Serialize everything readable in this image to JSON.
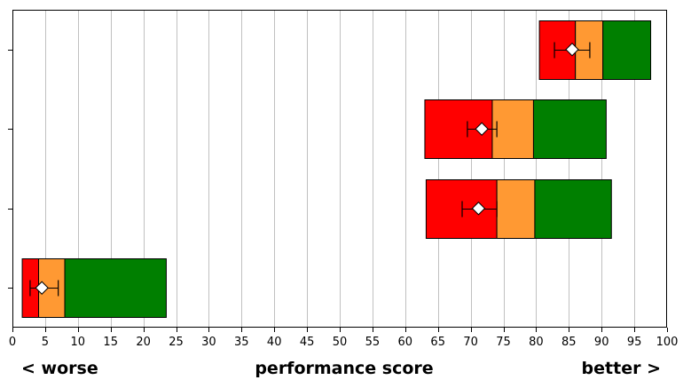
{
  "chart_data": {
    "type": "bar",
    "subtype": "bullet-range",
    "x_ticks": [
      0,
      5,
      10,
      15,
      20,
      25,
      30,
      35,
      40,
      45,
      50,
      55,
      60,
      65,
      70,
      75,
      80,
      85,
      90,
      95,
      100
    ],
    "xlim": [
      0,
      100
    ],
    "grid": "vertical",
    "bottom_labels": {
      "left": "< worse",
      "center": "performance score",
      "right": "better >"
    },
    "colors": {
      "low": "#ff0000",
      "mid": "#ff9933",
      "high": "#007f00",
      "grid": "#c0c0c0",
      "marker": "#ffffff"
    },
    "rows": [
      {
        "bands": [
          80.5,
          86.0,
          90.2,
          97.5
        ],
        "marker": 85.5,
        "error": [
          82.8,
          88.2
        ]
      },
      {
        "bands": [
          63.0,
          73.3,
          79.6,
          90.7
        ],
        "marker": 71.7,
        "error": [
          69.5,
          74.0
        ]
      },
      {
        "bands": [
          63.2,
          74.0,
          79.8,
          91.5
        ],
        "marker": 71.2,
        "error": [
          68.7,
          74.0
        ]
      },
      {
        "bands": [
          1.5,
          4.0,
          8.0,
          23.5
        ],
        "marker": 4.5,
        "error": [
          2.7,
          7.0
        ]
      }
    ]
  }
}
